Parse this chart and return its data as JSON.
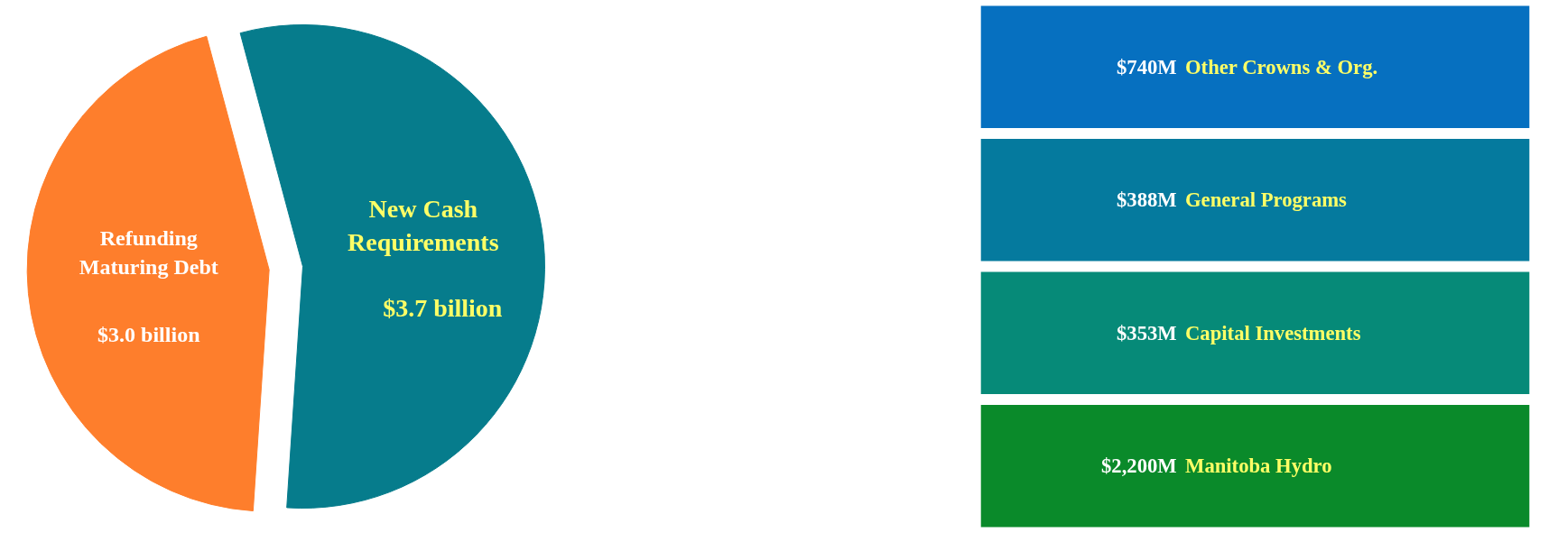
{
  "chart_data": [
    {
      "type": "pie",
      "categories": [
        "Refunding Maturing Debt",
        "New Cash Requirements"
      ],
      "values": [
        3.0,
        3.7
      ],
      "value_labels": [
        "$3.0 billion",
        "$3.7 billion"
      ],
      "colors": [
        "#fe7e2c",
        "#067c8c"
      ]
    },
    {
      "type": "other",
      "categories": [
        "Other Crowns & Org.",
        "General Programs",
        "Capital Investments",
        "Manitoba Hydro"
      ],
      "value_labels": [
        "$740M",
        "$388M",
        "$353M",
        "$2,200M"
      ],
      "colors": [
        "#0670c0",
        "#057a9e",
        "#068a78",
        "#0a8a2a"
      ]
    }
  ]
}
